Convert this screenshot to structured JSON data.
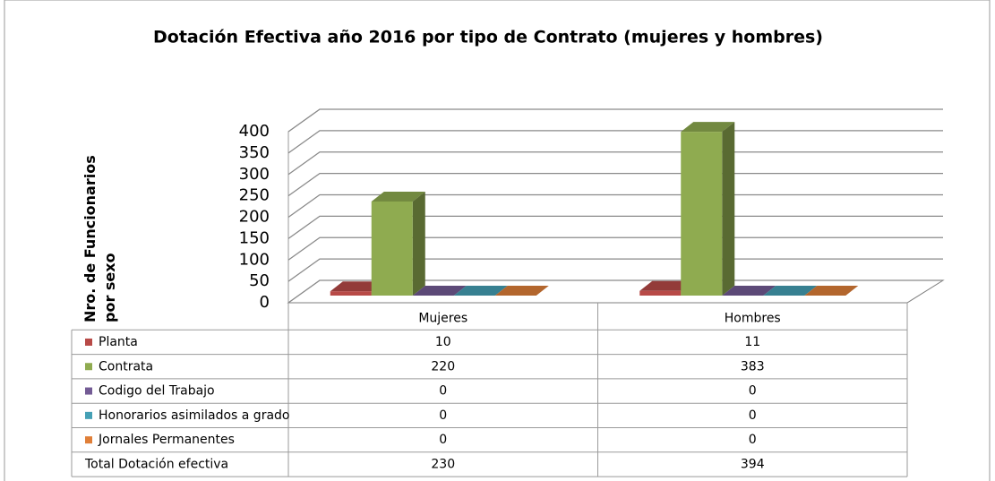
{
  "chart_data": {
    "type": "bar3d",
    "title": "Dotación Efectiva año 2016 por tipo de Contrato (mujeres y hombres)",
    "y_label": "Nro. de Funcionarios por sexo",
    "categories": [
      "Mujeres",
      "Hombres"
    ],
    "series": [
      {
        "name": "Planta",
        "color": "#b84a47",
        "values": [
          10,
          11
        ]
      },
      {
        "name": "Contrata",
        "color": "#8fab50",
        "values": [
          220,
          383
        ]
      },
      {
        "name": "Codigo del Trabajo",
        "color": "#735b95",
        "values": [
          0,
          0
        ]
      },
      {
        "name": "Honorarios asimilados a grado",
        "color": "#45a0b5",
        "values": [
          0,
          0
        ]
      },
      {
        "name": "Jornales Permanentes",
        "color": "#e07f38",
        "values": [
          0,
          0
        ]
      }
    ],
    "total": {
      "name": "Total Dotación efectiva",
      "values": [
        230,
        394
      ]
    },
    "ylim": [
      0,
      400
    ],
    "yticks": [
      0,
      50,
      100,
      150,
      200,
      250,
      300,
      350,
      400
    ],
    "grid": true
  }
}
